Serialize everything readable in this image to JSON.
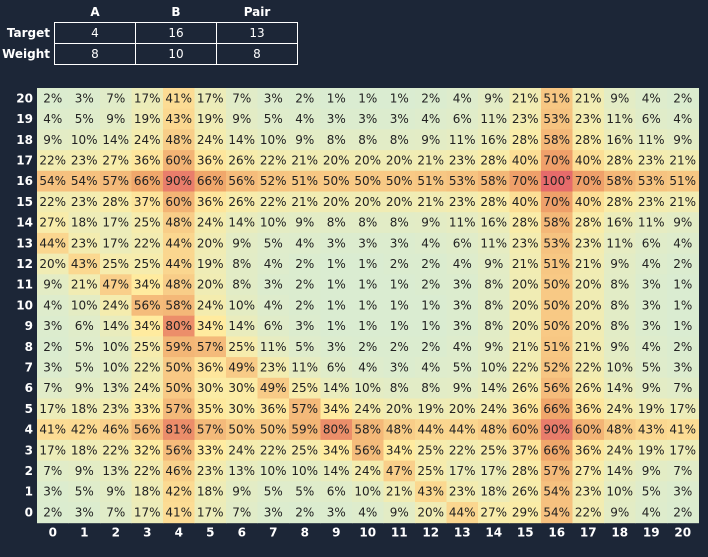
{
  "params": {
    "columns": [
      "A",
      "B",
      "Pair"
    ],
    "rows": [
      {
        "label": "Target",
        "values": [
          "4",
          "16",
          "13"
        ]
      },
      {
        "label": "Weight",
        "values": [
          "8",
          "10",
          "8"
        ]
      }
    ]
  },
  "chart_data": {
    "type": "heatmap",
    "x": [
      0,
      1,
      2,
      3,
      4,
      5,
      6,
      7,
      8,
      9,
      10,
      11,
      12,
      13,
      14,
      15,
      16,
      17,
      18,
      19,
      20
    ],
    "y": [
      20,
      19,
      18,
      17,
      16,
      15,
      14,
      13,
      12,
      11,
      10,
      9,
      8,
      7,
      6,
      5,
      4,
      3,
      2,
      1,
      0
    ],
    "values": [
      [
        2,
        3,
        7,
        17,
        41,
        17,
        7,
        3,
        2,
        1,
        1,
        1,
        2,
        4,
        9,
        21,
        51,
        21,
        9,
        4,
        2
      ],
      [
        4,
        5,
        9,
        19,
        43,
        19,
        9,
        5,
        4,
        3,
        3,
        3,
        4,
        6,
        11,
        23,
        53,
        23,
        11,
        6,
        4
      ],
      [
        9,
        10,
        14,
        24,
        48,
        24,
        14,
        10,
        9,
        8,
        8,
        8,
        9,
        11,
        16,
        28,
        58,
        28,
        16,
        11,
        9
      ],
      [
        22,
        23,
        27,
        36,
        60,
        36,
        26,
        22,
        21,
        20,
        20,
        20,
        21,
        23,
        28,
        40,
        70,
        40,
        28,
        23,
        21
      ],
      [
        54,
        54,
        57,
        66,
        90,
        66,
        56,
        52,
        51,
        50,
        50,
        50,
        51,
        53,
        58,
        70,
        100,
        70,
        58,
        53,
        51
      ],
      [
        22,
        23,
        28,
        37,
        60,
        36,
        26,
        22,
        21,
        20,
        20,
        20,
        21,
        23,
        28,
        40,
        70,
        40,
        28,
        23,
        21
      ],
      [
        27,
        18,
        17,
        25,
        48,
        24,
        14,
        10,
        9,
        8,
        8,
        8,
        9,
        11,
        16,
        28,
        58,
        28,
        16,
        11,
        9
      ],
      [
        44,
        23,
        17,
        22,
        44,
        20,
        9,
        5,
        4,
        3,
        3,
        3,
        4,
        6,
        11,
        23,
        53,
        23,
        11,
        6,
        4
      ],
      [
        20,
        43,
        25,
        25,
        44,
        19,
        8,
        4,
        2,
        1,
        1,
        2,
        2,
        4,
        9,
        21,
        51,
        21,
        9,
        4,
        2
      ],
      [
        9,
        21,
        47,
        34,
        48,
        20,
        8,
        3,
        2,
        1,
        1,
        1,
        2,
        3,
        8,
        20,
        50,
        20,
        8,
        3,
        1
      ],
      [
        4,
        10,
        24,
        56,
        58,
        24,
        10,
        4,
        2,
        1,
        1,
        1,
        1,
        3,
        8,
        20,
        50,
        20,
        8,
        3,
        1
      ],
      [
        3,
        6,
        14,
        34,
        80,
        34,
        14,
        6,
        3,
        1,
        1,
        1,
        1,
        3,
        8,
        20,
        50,
        20,
        8,
        3,
        1
      ],
      [
        2,
        5,
        10,
        25,
        59,
        57,
        25,
        11,
        5,
        3,
        2,
        2,
        2,
        4,
        9,
        21,
        51,
        21,
        9,
        4,
        2
      ],
      [
        3,
        5,
        10,
        22,
        50,
        36,
        49,
        23,
        11,
        6,
        4,
        3,
        4,
        5,
        10,
        22,
        52,
        22,
        10,
        5,
        3
      ],
      [
        7,
        9,
        13,
        24,
        50,
        30,
        30,
        49,
        25,
        14,
        10,
        8,
        8,
        9,
        14,
        26,
        56,
        26,
        14,
        9,
        7
      ],
      [
        17,
        18,
        23,
        33,
        57,
        35,
        30,
        36,
        57,
        34,
        24,
        20,
        19,
        20,
        24,
        36,
        66,
        36,
        24,
        19,
        17
      ],
      [
        41,
        42,
        46,
        56,
        81,
        57,
        50,
        50,
        59,
        80,
        58,
        48,
        44,
        44,
        48,
        60,
        90,
        60,
        48,
        43,
        41
      ],
      [
        17,
        18,
        22,
        32,
        56,
        33,
        24,
        22,
        25,
        34,
        56,
        34,
        25,
        22,
        25,
        37,
        66,
        36,
        24,
        19,
        17
      ],
      [
        7,
        9,
        13,
        22,
        46,
        23,
        13,
        10,
        10,
        14,
        24,
        47,
        25,
        17,
        17,
        28,
        57,
        27,
        14,
        9,
        7
      ],
      [
        3,
        5,
        9,
        18,
        42,
        18,
        9,
        5,
        5,
        6,
        10,
        21,
        43,
        23,
        18,
        26,
        54,
        23,
        10,
        5,
        3
      ],
      [
        2,
        3,
        7,
        17,
        41,
        17,
        7,
        3,
        2,
        3,
        4,
        9,
        20,
        44,
        27,
        29,
        54,
        22,
        9,
        4,
        2
      ]
    ],
    "labels": [
      [
        "2%",
        "3%",
        "7%",
        "17%",
        "41%",
        "17%",
        "7%",
        "3%",
        "2%",
        "1%",
        "1%",
        "1%",
        "2%",
        "4%",
        "9%",
        "21%",
        "51%",
        "21%",
        "9%",
        "4%",
        "2%"
      ],
      [
        "4%",
        "5%",
        "9%",
        "19%",
        "43%",
        "19%",
        "9%",
        "5%",
        "4%",
        "3%",
        "3%",
        "3%",
        "4%",
        "6%",
        "11%",
        "23%",
        "53%",
        "23%",
        "11%",
        "6%",
        "4%"
      ],
      [
        "9%",
        "10%",
        "14%",
        "24%",
        "48%",
        "24%",
        "14%",
        "10%",
        "9%",
        "8%",
        "8%",
        "8%",
        "9%",
        "11%",
        "16%",
        "28%",
        "58%",
        "28%",
        "16%",
        "11%",
        "9%"
      ],
      [
        "22%",
        "23%",
        "27%",
        "36%",
        "60%",
        "36%",
        "26%",
        "22%",
        "21%",
        "20%",
        "20%",
        "20%",
        "21%",
        "23%",
        "28%",
        "40%",
        "70%",
        "40%",
        "28%",
        "23%",
        "21%"
      ],
      [
        "54%",
        "54%",
        "57%",
        "66%",
        "90%",
        "66%",
        "56%",
        "52%",
        "51%",
        "50%",
        "50%",
        "50%",
        "51%",
        "53%",
        "58%",
        "70%",
        "100°",
        "70%",
        "58%",
        "53%",
        "51%"
      ],
      [
        "22%",
        "23%",
        "28%",
        "37%",
        "60%",
        "36%",
        "26%",
        "22%",
        "21%",
        "20%",
        "20%",
        "20%",
        "21%",
        "23%",
        "28%",
        "40%",
        "70%",
        "40%",
        "28%",
        "23%",
        "21%"
      ],
      [
        "27%",
        "18%",
        "17%",
        "25%",
        "48%",
        "24%",
        "14%",
        "10%",
        "9%",
        "8%",
        "8%",
        "8%",
        "9%",
        "11%",
        "16%",
        "28%",
        "58%",
        "28%",
        "16%",
        "11%",
        "9%"
      ],
      [
        "44%",
        "23%",
        "17%",
        "22%",
        "44%",
        "20%",
        "9%",
        "5%",
        "4%",
        "3%",
        "3%",
        "3%",
        "4%",
        "6%",
        "11%",
        "23%",
        "53%",
        "23%",
        "11%",
        "6%",
        "4%"
      ],
      [
        "20%",
        "43%",
        "25%",
        "25%",
        "44%",
        "19%",
        "8%",
        "4%",
        "2%",
        "1%",
        "1%",
        "2%",
        "2%",
        "4%",
        "9%",
        "21%",
        "51%",
        "21%",
        "9%",
        "4%",
        "2%"
      ],
      [
        "9%",
        "21%",
        "47%",
        "34%",
        "48%",
        "20%",
        "8%",
        "3%",
        "2%",
        "1%",
        "1%",
        "1%",
        "2%",
        "3%",
        "8%",
        "20%",
        "50%",
        "20%",
        "8%",
        "3%",
        "1%"
      ],
      [
        "4%",
        "10%",
        "24%",
        "56%",
        "58%",
        "24%",
        "10%",
        "4%",
        "2%",
        "1%",
        "1%",
        "1%",
        "1%",
        "3%",
        "8%",
        "20%",
        "50%",
        "20%",
        "8%",
        "3%",
        "1%"
      ],
      [
        "3%",
        "6%",
        "14%",
        "34%",
        "80%",
        "34%",
        "14%",
        "6%",
        "3%",
        "1%",
        "1%",
        "1%",
        "1%",
        "3%",
        "8%",
        "20%",
        "50%",
        "20%",
        "8%",
        "3%",
        "1%"
      ],
      [
        "2%",
        "5%",
        "10%",
        "25%",
        "59%",
        "57%",
        "25%",
        "11%",
        "5%",
        "3%",
        "2%",
        "2%",
        "2%",
        "4%",
        "9%",
        "21%",
        "51%",
        "21%",
        "9%",
        "4%",
        "2%"
      ],
      [
        "3%",
        "5%",
        "10%",
        "22%",
        "50%",
        "36%",
        "49%",
        "23%",
        "11%",
        "6%",
        "4%",
        "3%",
        "4%",
        "5%",
        "10%",
        "22%",
        "52%",
        "22%",
        "10%",
        "5%",
        "3%"
      ],
      [
        "7%",
        "9%",
        "13%",
        "24%",
        "50%",
        "30%",
        "30%",
        "49%",
        "25%",
        "14%",
        "10%",
        "8%",
        "8%",
        "9%",
        "14%",
        "26%",
        "56%",
        "26%",
        "14%",
        "9%",
        "7%"
      ],
      [
        "17%",
        "18%",
        "23%",
        "33%",
        "57%",
        "35%",
        "30%",
        "36%",
        "57%",
        "34%",
        "24%",
        "20%",
        "19%",
        "20%",
        "24%",
        "36%",
        "66%",
        "36%",
        "24%",
        "19%",
        "17%"
      ],
      [
        "41%",
        "42%",
        "46%",
        "56%",
        "81%",
        "57%",
        "50%",
        "50%",
        "59%",
        "80%",
        "58%",
        "48%",
        "44%",
        "44%",
        "48%",
        "60%",
        "90%",
        "60%",
        "48%",
        "43%",
        "41%"
      ],
      [
        "17%",
        "18%",
        "22%",
        "32%",
        "56%",
        "33%",
        "24%",
        "22%",
        "25%",
        "34%",
        "56%",
        "34%",
        "25%",
        "22%",
        "25%",
        "37%",
        "66%",
        "36%",
        "24%",
        "19%",
        "17%"
      ],
      [
        "7%",
        "9%",
        "13%",
        "22%",
        "46%",
        "23%",
        "13%",
        "10%",
        "10%",
        "14%",
        "24%",
        "47%",
        "25%",
        "17%",
        "17%",
        "28%",
        "57%",
        "27%",
        "14%",
        "9%",
        "7%"
      ],
      [
        "3%",
        "5%",
        "9%",
        "18%",
        "42%",
        "18%",
        "9%",
        "5%",
        "5%",
        "6%",
        "10%",
        "21%",
        "43%",
        "23%",
        "18%",
        "26%",
        "54%",
        "23%",
        "10%",
        "5%",
        "3%"
      ],
      [
        "2%",
        "3%",
        "7%",
        "17%",
        "41%",
        "17%",
        "7%",
        "3%",
        "2%",
        "3%",
        "4%",
        "9%",
        "20%",
        "44%",
        "27%",
        "29%",
        "54%",
        "22%",
        "9%",
        "4%",
        "2%"
      ]
    ],
    "colorscale": [
      "#d9ecd2",
      "#ffeca0",
      "#f0a66a",
      "#e66b6b"
    ],
    "background": "#1c2637"
  }
}
